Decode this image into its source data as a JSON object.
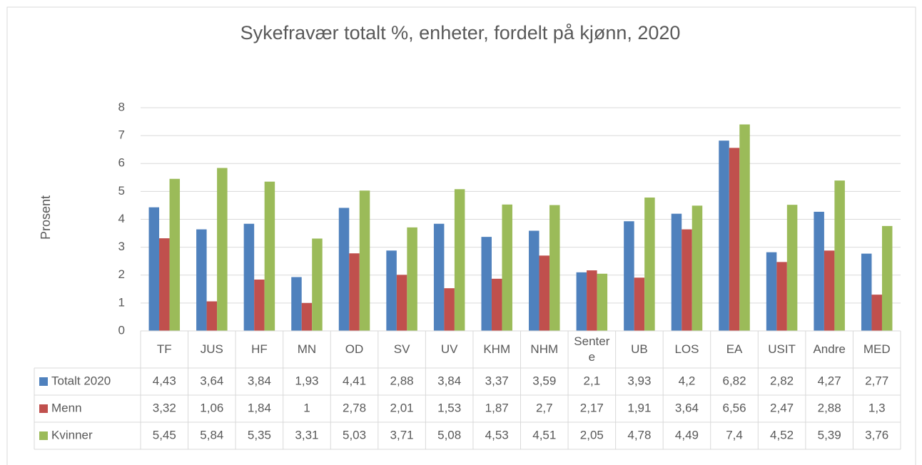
{
  "chart_data": {
    "type": "bar",
    "title": "Sykefravær totalt %, enheter, fordelt på kjønn, 2020",
    "y_label": "Prosent",
    "categories": [
      "TF",
      "JUS",
      "HF",
      "MN",
      "OD",
      "SV",
      "UV",
      "KHM",
      "NHM",
      "Sentere",
      "UB",
      "LOS",
      "EA",
      "USIT",
      "Andre",
      "MED"
    ],
    "series": [
      {
        "name": "Totalt 2020",
        "color": "#4f81bd",
        "values": [
          4.43,
          3.64,
          3.84,
          1.93,
          4.41,
          2.88,
          3.84,
          3.37,
          3.59,
          2.1,
          3.93,
          4.2,
          6.82,
          2.82,
          4.27,
          2.77
        ],
        "value_labels": [
          "4,43",
          "3,64",
          "3,84",
          "1,93",
          "4,41",
          "2,88",
          "3,84",
          "3,37",
          "3,59",
          "2,1",
          "3,93",
          "4,2",
          "6,82",
          "2,82",
          "4,27",
          "2,77"
        ]
      },
      {
        "name": "Menn",
        "color": "#c0504d",
        "values": [
          3.32,
          1.06,
          1.84,
          1,
          2.78,
          2.01,
          1.53,
          1.87,
          2.7,
          2.17,
          1.91,
          3.64,
          6.56,
          2.47,
          2.88,
          1.3
        ],
        "value_labels": [
          "3,32",
          "1,06",
          "1,84",
          "1",
          "2,78",
          "2,01",
          "1,53",
          "1,87",
          "2,7",
          "2,17",
          "1,91",
          "3,64",
          "6,56",
          "2,47",
          "2,88",
          "1,3"
        ]
      },
      {
        "name": "Kvinner",
        "color": "#9bbb59",
        "values": [
          5.45,
          5.84,
          5.35,
          3.31,
          5.03,
          3.71,
          5.08,
          4.53,
          4.51,
          2.05,
          4.78,
          4.49,
          7.4,
          4.52,
          5.39,
          3.76
        ],
        "value_labels": [
          "5,45",
          "5,84",
          "5,35",
          "3,31",
          "5,03",
          "3,71",
          "5,08",
          "4,53",
          "4,51",
          "2,05",
          "4,78",
          "4,49",
          "7,4",
          "4,52",
          "5,39",
          "3,76"
        ]
      }
    ],
    "ylim": [
      0,
      8
    ],
    "yticks": [
      0,
      1,
      2,
      3,
      4,
      5,
      6,
      7,
      8
    ],
    "grid": true
  }
}
